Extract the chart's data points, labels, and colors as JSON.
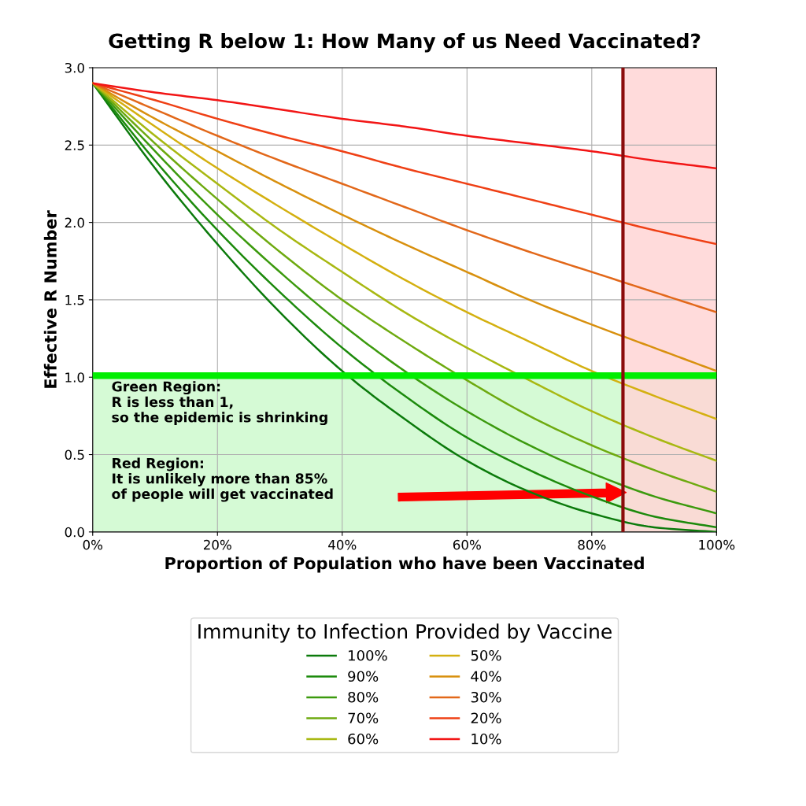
{
  "chart_data": {
    "type": "line",
    "title": "Getting R below 1: How Many of us Need Vaccinated?",
    "xlabel": "Proportion of Population who have been Vaccinated",
    "ylabel": "Effective R Number",
    "legend_title": "Immunity to Infection Provided by Vaccine",
    "x": [
      0,
      0.1,
      0.2,
      0.3,
      0.4,
      0.5,
      0.6,
      0.7,
      0.8,
      0.9,
      1.0
    ],
    "series": [
      {
        "name": "100%",
        "color": "#0b7a0b",
        "values": [
          2.9,
          2.35,
          1.86,
          1.42,
          1.04,
          0.73,
          0.46,
          0.26,
          0.12,
          0.03,
          0
        ]
      },
      {
        "name": "90%",
        "color": "#1c8a0c",
        "values": [
          2.9,
          2.4,
          1.95,
          1.55,
          1.19,
          0.88,
          0.61,
          0.4,
          0.23,
          0.1,
          0.03
        ]
      },
      {
        "name": "80%",
        "color": "#3c9a0e",
        "values": [
          2.9,
          2.46,
          2.05,
          1.68,
          1.34,
          1.04,
          0.78,
          0.56,
          0.38,
          0.23,
          0.12
        ]
      },
      {
        "name": "70%",
        "color": "#6eaa10",
        "values": [
          2.9,
          2.51,
          2.15,
          1.81,
          1.5,
          1.23,
          0.98,
          0.75,
          0.56,
          0.4,
          0.26
        ]
      },
      {
        "name": "60%",
        "color": "#a8b812",
        "values": [
          2.9,
          2.56,
          2.25,
          1.95,
          1.68,
          1.42,
          1.19,
          0.98,
          0.78,
          0.61,
          0.46
        ]
      },
      {
        "name": "50%",
        "color": "#d4b010",
        "values": [
          2.9,
          2.62,
          2.35,
          2.1,
          1.86,
          1.63,
          1.42,
          1.23,
          1.04,
          0.88,
          0.73
        ]
      },
      {
        "name": "40%",
        "color": "#d8900e",
        "values": [
          2.9,
          2.67,
          2.46,
          2.25,
          2.05,
          1.86,
          1.68,
          1.5,
          1.34,
          1.19,
          1.04
        ]
      },
      {
        "name": "30%",
        "color": "#e2681a",
        "values": [
          2.9,
          2.73,
          2.56,
          2.4,
          2.25,
          2.1,
          1.95,
          1.81,
          1.68,
          1.55,
          1.42
        ]
      },
      {
        "name": "20%",
        "color": "#ef4015",
        "values": [
          2.9,
          2.79,
          2.67,
          2.56,
          2.46,
          2.35,
          2.25,
          2.15,
          2.05,
          1.95,
          1.86
        ]
      },
      {
        "name": "10%",
        "color": "#f21515",
        "values": [
          2.9,
          2.84,
          2.79,
          2.73,
          2.67,
          2.62,
          2.56,
          2.51,
          2.46,
          2.4,
          2.35
        ]
      }
    ],
    "xlim": [
      0,
      1.0
    ],
    "ylim": [
      0,
      3.0
    ],
    "xticks": [
      {
        "value": 0,
        "label": "0%"
      },
      {
        "value": 0.2,
        "label": "20%"
      },
      {
        "value": 0.4,
        "label": "40%"
      },
      {
        "value": 0.6,
        "label": "60%"
      },
      {
        "value": 0.8,
        "label": "80%"
      },
      {
        "value": 1.0,
        "label": "100%"
      }
    ],
    "yticks": [
      {
        "value": 0,
        "label": "0.0"
      },
      {
        "value": 0.5,
        "label": "0.5"
      },
      {
        "value": 1.0,
        "label": "1.0"
      },
      {
        "value": 1.5,
        "label": "1.5"
      },
      {
        "value": 2.0,
        "label": "2.0"
      },
      {
        "value": 2.5,
        "label": "2.5"
      },
      {
        "value": 3.0,
        "label": "3.0"
      }
    ],
    "ref_lines": [
      {
        "axis": "y",
        "value": 1.01,
        "color": "#00ee00"
      },
      {
        "axis": "x",
        "value": 0.85,
        "color": "#8b0a0a"
      }
    ],
    "bands": [
      {
        "axis": "y",
        "from": 0,
        "to": 1.0,
        "color": "#d5fad5"
      },
      {
        "axis": "x",
        "from": 0.85,
        "to": 1.0,
        "color": "#ffd5d5"
      }
    ],
    "annotations": [
      "Green Region:\nR is less than 1,\nso the epidemic is shrinking",
      "Red Region:\nIt is unlikely more than 85%\nof people will get vaccinated"
    ],
    "grid": true,
    "legend": "bottom",
    "marker": "none",
    "line_style": "solid"
  }
}
